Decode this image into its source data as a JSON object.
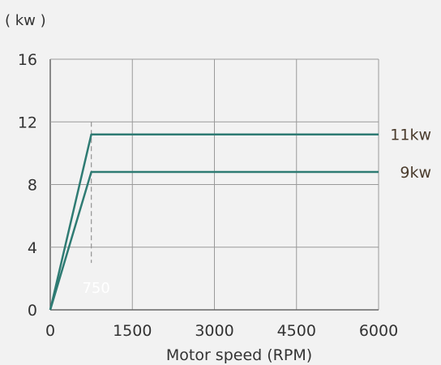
{
  "chart_data": {
    "type": "line",
    "unit_label": "( kw )",
    "xlabel": "Motor speed (RPM)",
    "ylabel": "",
    "xlim": [
      0,
      6000
    ],
    "ylim": [
      0,
      16
    ],
    "x_ticks": [
      "0",
      "1500",
      "3000",
      "4500",
      "6000"
    ],
    "y_ticks": [
      "0",
      "4",
      "8",
      "12",
      "16"
    ],
    "grid": true,
    "series": [
      {
        "name": "11kw",
        "color": "#2e7b73",
        "x": [
          0,
          750,
          6000
        ],
        "y": [
          0,
          11.2,
          11.2
        ]
      },
      {
        "name": "9kw",
        "color": "#2e7b73",
        "x": [
          0,
          750,
          6000
        ],
        "y": [
          0,
          8.8,
          8.8
        ]
      }
    ],
    "annotations": [
      {
        "text": "750",
        "x": 750
      }
    ]
  }
}
